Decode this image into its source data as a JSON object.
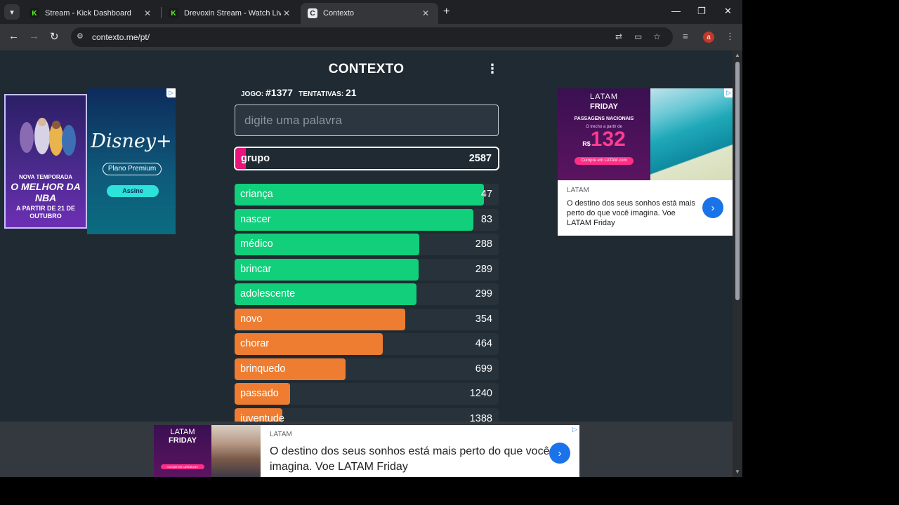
{
  "browser": {
    "tabs": [
      {
        "title": "Stream - Kick Dashboard",
        "favicon": "kick-icon",
        "active": false
      },
      {
        "title": "Drevoxin Stream - Watch Live on Kick",
        "favicon": "kick-icon",
        "active": false
      },
      {
        "title": "Contexto",
        "favicon": "contexto-icon",
        "active": true
      }
    ],
    "url": "contexto.me/pt/",
    "profile_initial": "a"
  },
  "game": {
    "title": "CONTEXTO",
    "game_label": "JOGO:",
    "game_number": "#1377",
    "attempts_label": "TENTATIVAS:",
    "attempts": "21",
    "input_placeholder": "digite uma palavra",
    "input_value": "",
    "last_guess": {
      "word": "grupo",
      "distance": "2587",
      "bar_color": "#e9157a",
      "fill_fraction": 0.04
    },
    "guesses": [
      {
        "word": "criança",
        "distance": "47",
        "color": "#11cf7a",
        "fill_fraction": 0.945
      },
      {
        "word": "nascer",
        "distance": "83",
        "color": "#11cf7a",
        "fill_fraction": 0.905
      },
      {
        "word": "médico",
        "distance": "288",
        "color": "#11cf7a",
        "fill_fraction": 0.7
      },
      {
        "word": "brincar",
        "distance": "289",
        "color": "#11cf7a",
        "fill_fraction": 0.697
      },
      {
        "word": "adolescente",
        "distance": "299",
        "color": "#11cf7a",
        "fill_fraction": 0.69
      },
      {
        "word": "novo",
        "distance": "354",
        "color": "#ef7d31",
        "fill_fraction": 0.645
      },
      {
        "word": "chorar",
        "distance": "464",
        "color": "#ef7d31",
        "fill_fraction": 0.56
      },
      {
        "word": "brinquedo",
        "distance": "699",
        "color": "#ef7d31",
        "fill_fraction": 0.42
      },
      {
        "word": "passado",
        "distance": "1240",
        "color": "#ef7d31",
        "fill_fraction": 0.21
      },
      {
        "word": "juventude",
        "distance": "1388",
        "color": "#ef7d31",
        "fill_fraction": 0.18
      }
    ]
  },
  "ads": {
    "left": {
      "headline_top": "NOVA TEMPORADA",
      "headline_main": "O MELHOR DA NBA",
      "date": "A PARTIR DE 21 DE OUTUBRO",
      "brand": "Disney+",
      "plan": "Plano Premium",
      "cta": "Assine"
    },
    "right": {
      "promo_line1": "LATAM",
      "promo_line2": "FRIDAY",
      "promo_line3": "PASSAGENS NACIONAIS",
      "promo_line4": "O trecho a partir de",
      "price_prefix": "R$",
      "price": "132",
      "promo_cta": "Compre em LATAM.com",
      "advertiser": "LATAM",
      "copy": "O destino dos seus sonhos está mais perto do que você imagina. Voe LATAM Friday"
    },
    "bottom": {
      "promo_line1": "LATAM",
      "promo_line2": "FRIDAY",
      "promo_cta": "Compre em LATAM.com",
      "advertiser": "LATAM",
      "copy": "O destino dos seus sonhos está mais perto do que você imagina. Voe LATAM Friday"
    }
  }
}
